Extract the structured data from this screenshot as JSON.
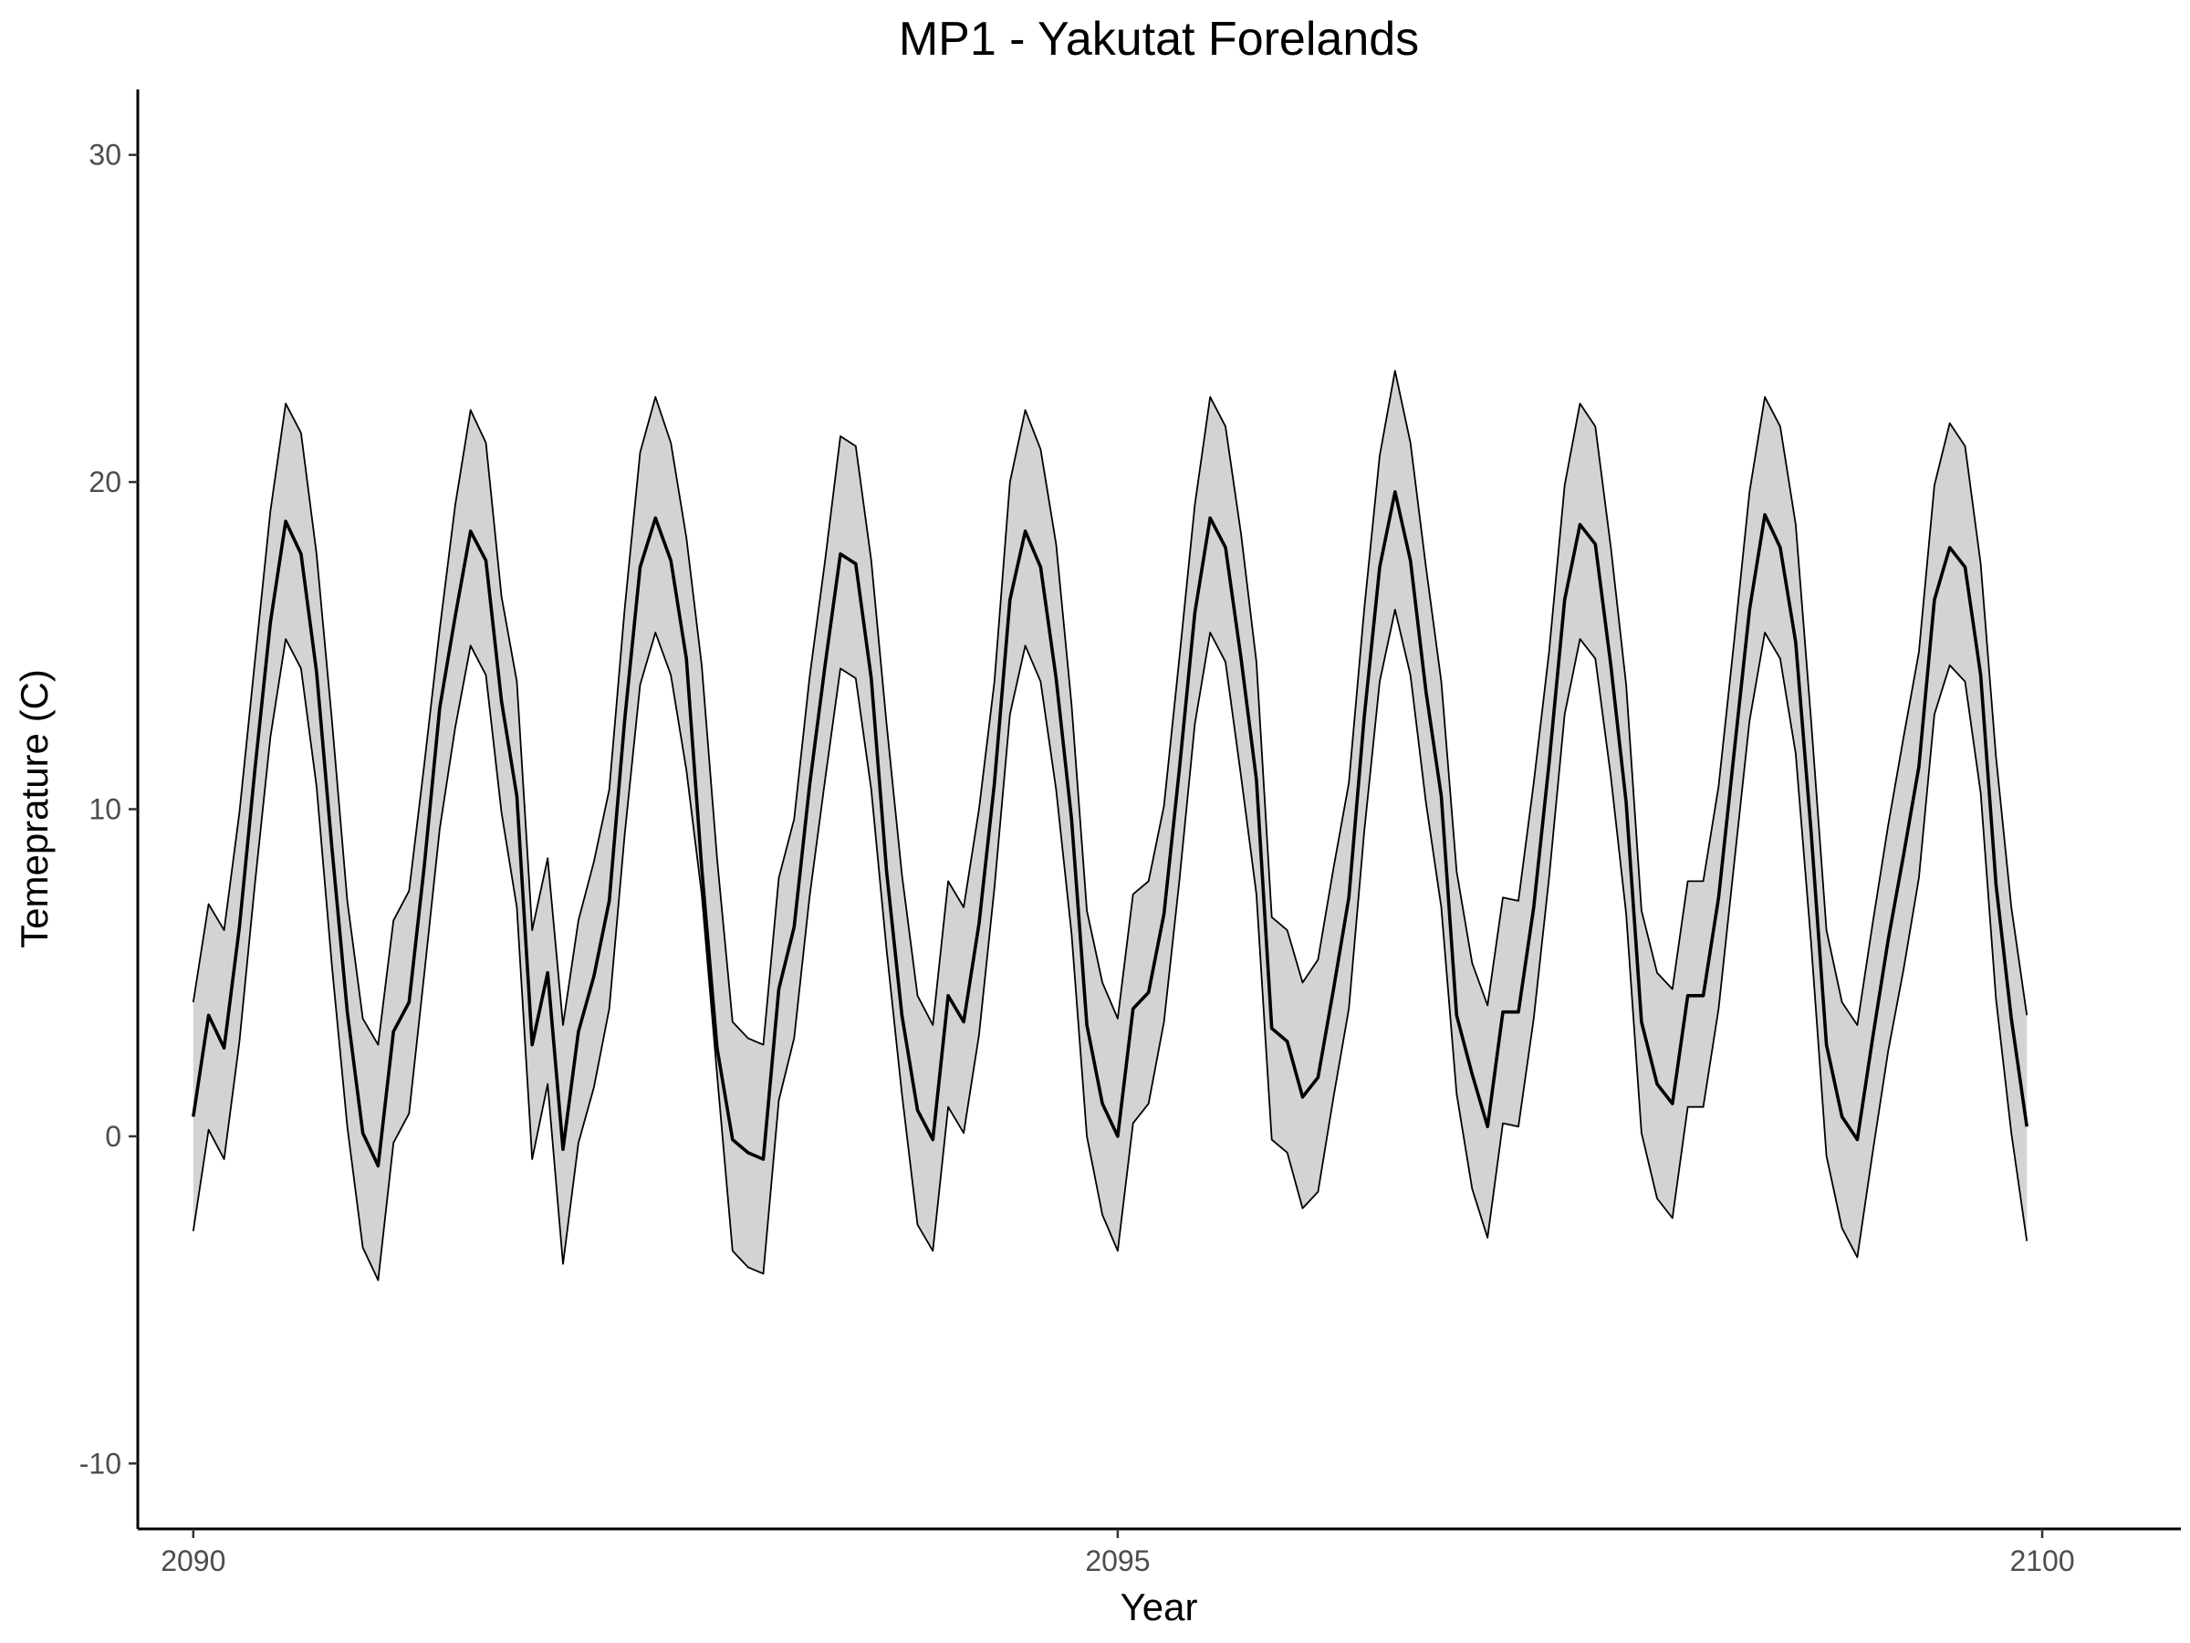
{
  "chart_data": {
    "type": "line",
    "title": "MP1 - Yakutat Forelands",
    "xlabel": "Year",
    "ylabel": "Temeprature (C)",
    "xlim": [
      2089.7,
      2100.75
    ],
    "ylim": [
      -12,
      32
    ],
    "x_ticks": [
      2090,
      2095,
      2100
    ],
    "y_ticks": [
      -10,
      0,
      10,
      20,
      30
    ],
    "x_tick_labels": [
      "2090",
      "2095",
      "2100"
    ],
    "y_tick_labels": [
      "-10",
      "0",
      "10",
      "20",
      "30"
    ],
    "grid": false,
    "legend": "none",
    "band_fill": "#d3d3d3",
    "line_color": "#000000",
    "x": [
      2090.0,
      2090.083,
      2090.167,
      2090.25,
      2090.333,
      2090.417,
      2090.5,
      2090.583,
      2090.667,
      2090.75,
      2090.833,
      2090.917,
      2091.0,
      2091.083,
      2091.167,
      2091.25,
      2091.333,
      2091.417,
      2091.5,
      2091.583,
      2091.667,
      2091.75,
      2091.833,
      2091.917,
      2092.0,
      2092.083,
      2092.167,
      2092.25,
      2092.333,
      2092.417,
      2092.5,
      2092.583,
      2092.667,
      2092.75,
      2092.833,
      2092.917,
      2093.0,
      2093.083,
      2093.167,
      2093.25,
      2093.333,
      2093.417,
      2093.5,
      2093.583,
      2093.667,
      2093.75,
      2093.833,
      2093.917,
      2094.0,
      2094.083,
      2094.167,
      2094.25,
      2094.333,
      2094.417,
      2094.5,
      2094.583,
      2094.667,
      2094.75,
      2094.833,
      2094.917,
      2095.0,
      2095.083,
      2095.167,
      2095.25,
      2095.333,
      2095.417,
      2095.5,
      2095.583,
      2095.667,
      2095.75,
      2095.833,
      2095.917,
      2096.0,
      2096.083,
      2096.167,
      2096.25,
      2096.333,
      2096.417,
      2096.5,
      2096.583,
      2096.667,
      2096.75,
      2096.833,
      2096.917,
      2097.0,
      2097.083,
      2097.167,
      2097.25,
      2097.333,
      2097.417,
      2097.5,
      2097.583,
      2097.667,
      2097.75,
      2097.833,
      2097.917,
      2098.0,
      2098.083,
      2098.167,
      2098.25,
      2098.333,
      2098.417,
      2098.5,
      2098.583,
      2098.667,
      2098.75,
      2098.833,
      2098.917,
      2099.0,
      2099.083,
      2099.167,
      2099.25,
      2099.333,
      2099.417,
      2099.5,
      2099.583,
      2099.667,
      2099.75,
      2099.833,
      2099.917
    ],
    "series": [
      {
        "values": [
          0.6,
          3.7,
          2.7,
          6.4,
          11.2,
          15.7,
          18.8,
          17.8,
          14.2,
          8.8,
          3.8,
          0.1,
          -0.9,
          3.2,
          4.1,
          8.3,
          13.1,
          15.9,
          18.5,
          17.6,
          13.3,
          10.4,
          2.8,
          5.0,
          -0.4,
          3.2,
          4.9,
          7.2,
          12.7,
          17.4,
          18.9,
          17.6,
          14.6,
          8.2,
          2.7,
          -0.1,
          -0.5,
          -0.7,
          4.5,
          6.4,
          10.7,
          14.4,
          17.8,
          17.5,
          14.0,
          8.1,
          3.7,
          0.8,
          -0.1,
          4.3,
          3.5,
          6.5,
          10.8,
          16.4,
          18.5,
          17.4,
          14.0,
          9.7,
          3.4,
          1.0,
          0.0,
          3.9,
          4.4,
          6.8,
          11.2,
          16.0,
          18.9,
          18.0,
          14.6,
          10.9,
          3.3,
          2.9,
          1.2,
          1.8,
          4.5,
          7.3,
          12.8,
          17.4,
          19.7,
          17.6,
          13.6,
          10.4,
          3.7,
          1.9,
          0.3,
          3.8,
          3.8,
          7.0,
          11.4,
          16.4,
          18.7,
          18.1,
          14.4,
          10.2,
          3.5,
          1.6,
          1.0,
          4.3,
          4.3,
          7.3,
          11.7,
          16.1,
          19.0,
          18.0,
          15.1,
          9.3,
          2.8,
          0.6,
          -0.1,
          3.0,
          6.0,
          8.6,
          11.3,
          16.4,
          18.0,
          17.4,
          14.1,
          7.7,
          3.6,
          0.3
        ]
      }
    ],
    "band": {
      "upper": [
        4.1,
        7.1,
        6.3,
        9.9,
        14.5,
        19.1,
        22.4,
        21.5,
        17.8,
        12.7,
        7.2,
        3.6,
        2.8,
        6.6,
        7.5,
        11.4,
        15.5,
        19.3,
        22.2,
        21.2,
        16.5,
        13.9,
        6.3,
        8.5,
        3.4,
        6.6,
        8.4,
        10.6,
        16.1,
        20.9,
        22.6,
        21.2,
        18.3,
        14.4,
        8.5,
        3.5,
        3.0,
        2.8,
        7.9,
        9.7,
        14.0,
        17.6,
        21.4,
        21.1,
        17.6,
        12.6,
        8.0,
        4.3,
        3.4,
        7.8,
        7.0,
        10.0,
        13.9,
        20.0,
        22.2,
        21.0,
        18.1,
        13.2,
        6.9,
        4.7,
        3.6,
        7.4,
        7.8,
        10.1,
        14.6,
        19.3,
        22.6,
        21.7,
        18.4,
        14.5,
        6.7,
        6.3,
        4.7,
        5.4,
        8.2,
        10.8,
        16.1,
        20.8,
        23.4,
        21.2,
        17.4,
        13.9,
        8.1,
        5.3,
        4.0,
        7.3,
        7.2,
        10.8,
        14.8,
        19.9,
        22.4,
        21.7,
        18.0,
        13.8,
        6.9,
        5.0,
        4.5,
        7.8,
        7.8,
        10.7,
        15.1,
        19.7,
        22.6,
        21.7,
        18.7,
        12.7,
        6.3,
        4.1,
        3.4,
        6.5,
        9.5,
        12.2,
        14.8,
        19.9,
        21.8,
        21.1,
        17.5,
        11.6,
        7.0,
        3.7
      ],
      "lower": [
        -2.9,
        0.2,
        -0.7,
        2.9,
        7.7,
        12.2,
        15.2,
        14.3,
        10.7,
        5.2,
        0.3,
        -3.4,
        -4.4,
        -0.2,
        0.7,
        5.0,
        9.4,
        12.5,
        15.0,
        14.1,
        9.9,
        7.0,
        -0.7,
        1.6,
        -3.9,
        -0.2,
        1.5,
        3.9,
        9.2,
        13.8,
        15.4,
        14.1,
        11.2,
        7.4,
        1.9,
        -3.5,
        -4.0,
        -4.2,
        1.1,
        3.0,
        7.3,
        10.9,
        14.3,
        14.0,
        10.6,
        5.7,
        1.3,
        -2.7,
        -3.5,
        0.9,
        0.1,
        3.1,
        7.6,
        12.9,
        15.0,
        13.9,
        10.6,
        6.2,
        0.0,
        -2.4,
        -3.5,
        0.4,
        1.0,
        3.5,
        7.8,
        12.6,
        15.4,
        14.5,
        11.0,
        7.4,
        -0.1,
        -0.5,
        -2.2,
        -1.7,
        1.2,
        3.9,
        9.3,
        13.9,
        16.1,
        14.1,
        10.2,
        7.0,
        1.3,
        -1.6,
        -3.1,
        0.4,
        0.3,
        3.6,
        7.9,
        12.9,
        15.2,
        14.6,
        11.0,
        6.8,
        0.1,
        -1.9,
        -2.5,
        0.9,
        0.9,
        3.9,
        8.3,
        12.7,
        15.4,
        14.6,
        11.7,
        5.9,
        -0.6,
        -2.8,
        -3.7,
        -0.5,
        2.6,
        5.1,
        7.9,
        12.9,
        14.4,
        13.9,
        10.5,
        4.2,
        0.1,
        -3.2
      ]
    }
  }
}
